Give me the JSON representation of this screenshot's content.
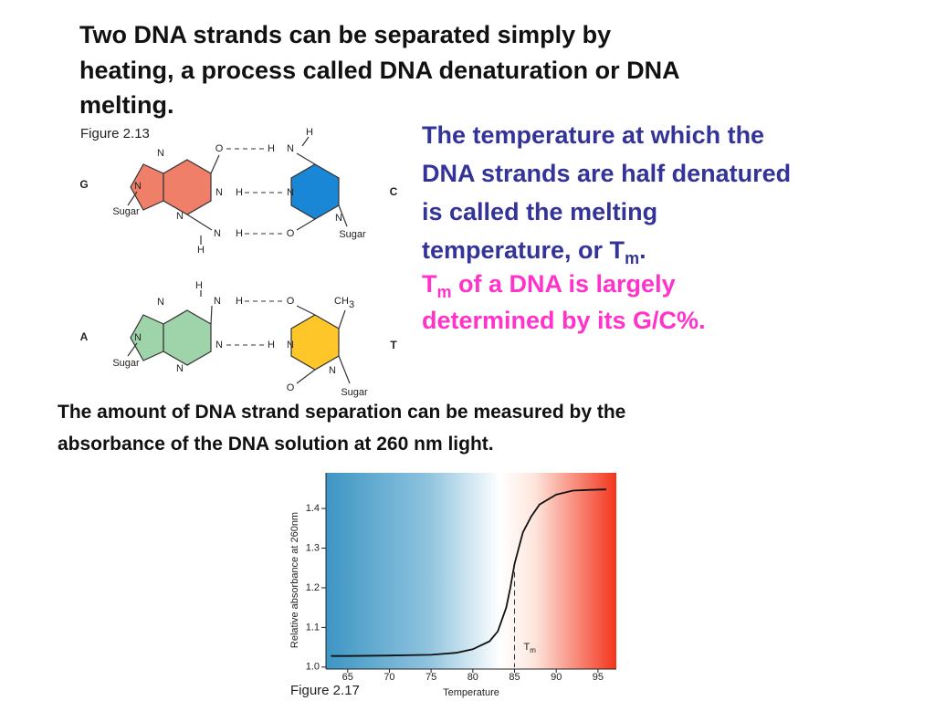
{
  "heading": [
    "Two DNA strands can be separated simply by",
    "heating, a process called DNA denaturation or DNA",
    "melting."
  ],
  "definition": [
    "The temperature at which the",
    "DNA strands are half denatured",
    "is called the melting",
    "temperature, or T"
  ],
  "definition_sub": "m",
  "definition_end": ".",
  "gc_note": {
    "symbol": "T",
    "sub": "m",
    "line1": " of a DNA is largely",
    "line2": "determined by its G/C%."
  },
  "measurement": [
    "The amount of DNA strand separation can be measured by the",
    "absorbance of the DNA solution at 260 nm light."
  ],
  "figure_2_13": {
    "caption": "Figure 2.13",
    "gc": {
      "left_base": "G",
      "right_base": "C",
      "atoms": [
        "N",
        "N",
        "Sugar",
        "N",
        "N",
        "H",
        "N",
        "H",
        "H",
        "O",
        "H",
        "N",
        "H",
        "N",
        "O",
        "N",
        "Sugar"
      ]
    },
    "at": {
      "left_base": "A",
      "right_base": "T",
      "atoms": [
        "H",
        "N",
        "H",
        "O",
        "CH",
        "3",
        "N",
        "N",
        "Sugar",
        "N",
        "N",
        "H",
        "N",
        "O",
        "N",
        "Sugar"
      ]
    }
  },
  "chart_data": {
    "type": "line",
    "caption": "Figure 2.17",
    "x_label": "Temperature",
    "y_label": "Relative absorbance at 260nm",
    "annotation": {
      "symbol": "T",
      "sub": "m"
    },
    "tm": 85,
    "x": [
      63,
      65,
      70,
      75,
      78,
      80,
      82,
      83,
      84,
      84.5,
      85,
      85.5,
      86,
      87,
      88,
      90,
      92,
      94,
      96
    ],
    "values": [
      1.028,
      1.028,
      1.029,
      1.031,
      1.036,
      1.045,
      1.065,
      1.09,
      1.15,
      1.2,
      1.26,
      1.3,
      1.34,
      1.38,
      1.41,
      1.435,
      1.445,
      1.447,
      1.448
    ],
    "color": "#111111",
    "xlim": [
      62.4,
      97.2
    ],
    "xticks": [
      65,
      70,
      75,
      80,
      85,
      90,
      95
    ],
    "ylim": [
      0.995,
      1.49
    ],
    "yticks": [
      {
        "value": 1,
        "label": "1.0"
      },
      1.1,
      1.2,
      1.3,
      1.4
    ]
  }
}
